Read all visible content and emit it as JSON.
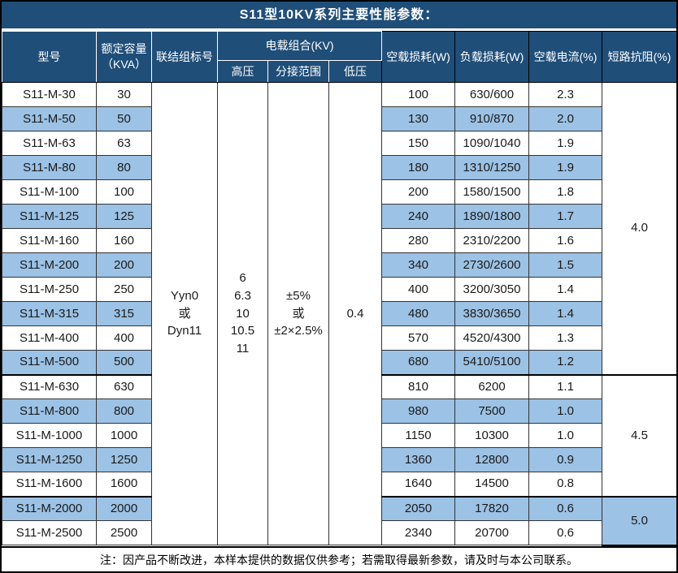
{
  "title": "S11型10KV系列主要性能参数：",
  "colors": {
    "header_bg": "#1F4E79",
    "header_text": "#FFFFFF",
    "alt_row_bg": "#9CC2E5",
    "row_bg": "#FFFFFF",
    "border": "#000000"
  },
  "header": {
    "model": "型号",
    "capacity": "额定容量\n（KVA）",
    "vector_group": "联结组标号",
    "voltage_combo": "电载组合(KV)",
    "hv": "高压",
    "tap_range": "分接范围",
    "lv": "低压",
    "no_load_loss": "空载损耗(W)",
    "load_loss": "负载损耗(W)",
    "no_load_current": "空载电流(%)",
    "impedance": "短路抗阻(%)"
  },
  "merged": {
    "vector_group": "Yyn0\n或\nDyn11",
    "hv": "6\n6.3\n10\n10.5\n11",
    "tap_range": "±5%\n或\n±2×2.5%",
    "lv": "0.4"
  },
  "impedance_groups": [
    {
      "value": "4.0",
      "start": 0,
      "span": 12
    },
    {
      "value": "4.5",
      "start": 12,
      "span": 5
    },
    {
      "value": "5.0",
      "start": 17,
      "span": 2
    }
  ],
  "rows": [
    {
      "model": "S11-M-30",
      "capacity": "30",
      "no_load_loss": "100",
      "load_loss": "630/600",
      "no_load_current": "2.3"
    },
    {
      "model": "S11-M-50",
      "capacity": "50",
      "no_load_loss": "130",
      "load_loss": "910/870",
      "no_load_current": "2.0"
    },
    {
      "model": "S11-M-63",
      "capacity": "63",
      "no_load_loss": "150",
      "load_loss": "1090/1040",
      "no_load_current": "1.9"
    },
    {
      "model": "S11-M-80",
      "capacity": "80",
      "no_load_loss": "180",
      "load_loss": "1310/1250",
      "no_load_current": "1.9"
    },
    {
      "model": "S11-M-100",
      "capacity": "100",
      "no_load_loss": "200",
      "load_loss": "1580/1500",
      "no_load_current": "1.8"
    },
    {
      "model": "S11-M-125",
      "capacity": "125",
      "no_load_loss": "240",
      "load_loss": "1890/1800",
      "no_load_current": "1.7"
    },
    {
      "model": "S11-M-160",
      "capacity": "160",
      "no_load_loss": "280",
      "load_loss": "2310/2200",
      "no_load_current": "1.6"
    },
    {
      "model": "S11-M-200",
      "capacity": "200",
      "no_load_loss": "340",
      "load_loss": "2730/2600",
      "no_load_current": "1.5"
    },
    {
      "model": "S11-M-250",
      "capacity": "250",
      "no_load_loss": "400",
      "load_loss": "3200/3050",
      "no_load_current": "1.4"
    },
    {
      "model": "S11-M-315",
      "capacity": "315",
      "no_load_loss": "480",
      "load_loss": "3830/3650",
      "no_load_current": "1.4"
    },
    {
      "model": "S11-M-400",
      "capacity": "400",
      "no_load_loss": "570",
      "load_loss": "4520/4300",
      "no_load_current": "1.3"
    },
    {
      "model": "S11-M-500",
      "capacity": "500",
      "no_load_loss": "680",
      "load_loss": "5410/5100",
      "no_load_current": "1.2"
    },
    {
      "model": "S11-M-630",
      "capacity": "630",
      "no_load_loss": "810",
      "load_loss": "6200",
      "no_load_current": "1.1"
    },
    {
      "model": "S11-M-800",
      "capacity": "800",
      "no_load_loss": "980",
      "load_loss": "7500",
      "no_load_current": "1.0"
    },
    {
      "model": "S11-M-1000",
      "capacity": "1000",
      "no_load_loss": "1150",
      "load_loss": "10300",
      "no_load_current": "1.0"
    },
    {
      "model": "S11-M-1250",
      "capacity": "1250",
      "no_load_loss": "1360",
      "load_loss": "12800",
      "no_load_current": "0.9"
    },
    {
      "model": "S11-M-1600",
      "capacity": "1600",
      "no_load_loss": "1640",
      "load_loss": "14500",
      "no_load_current": "0.8"
    },
    {
      "model": "S11-M-2000",
      "capacity": "2000",
      "no_load_loss": "2050",
      "load_loss": "17820",
      "no_load_current": "0.6"
    },
    {
      "model": "S11-M-2500",
      "capacity": "2500",
      "no_load_loss": "2340",
      "load_loss": "20700",
      "no_load_current": "0.6"
    }
  ],
  "footnote": "注：因产品不断改进，本样本提供的数据仅供参考；若需取得最新参数，请及时与本公司联系。"
}
